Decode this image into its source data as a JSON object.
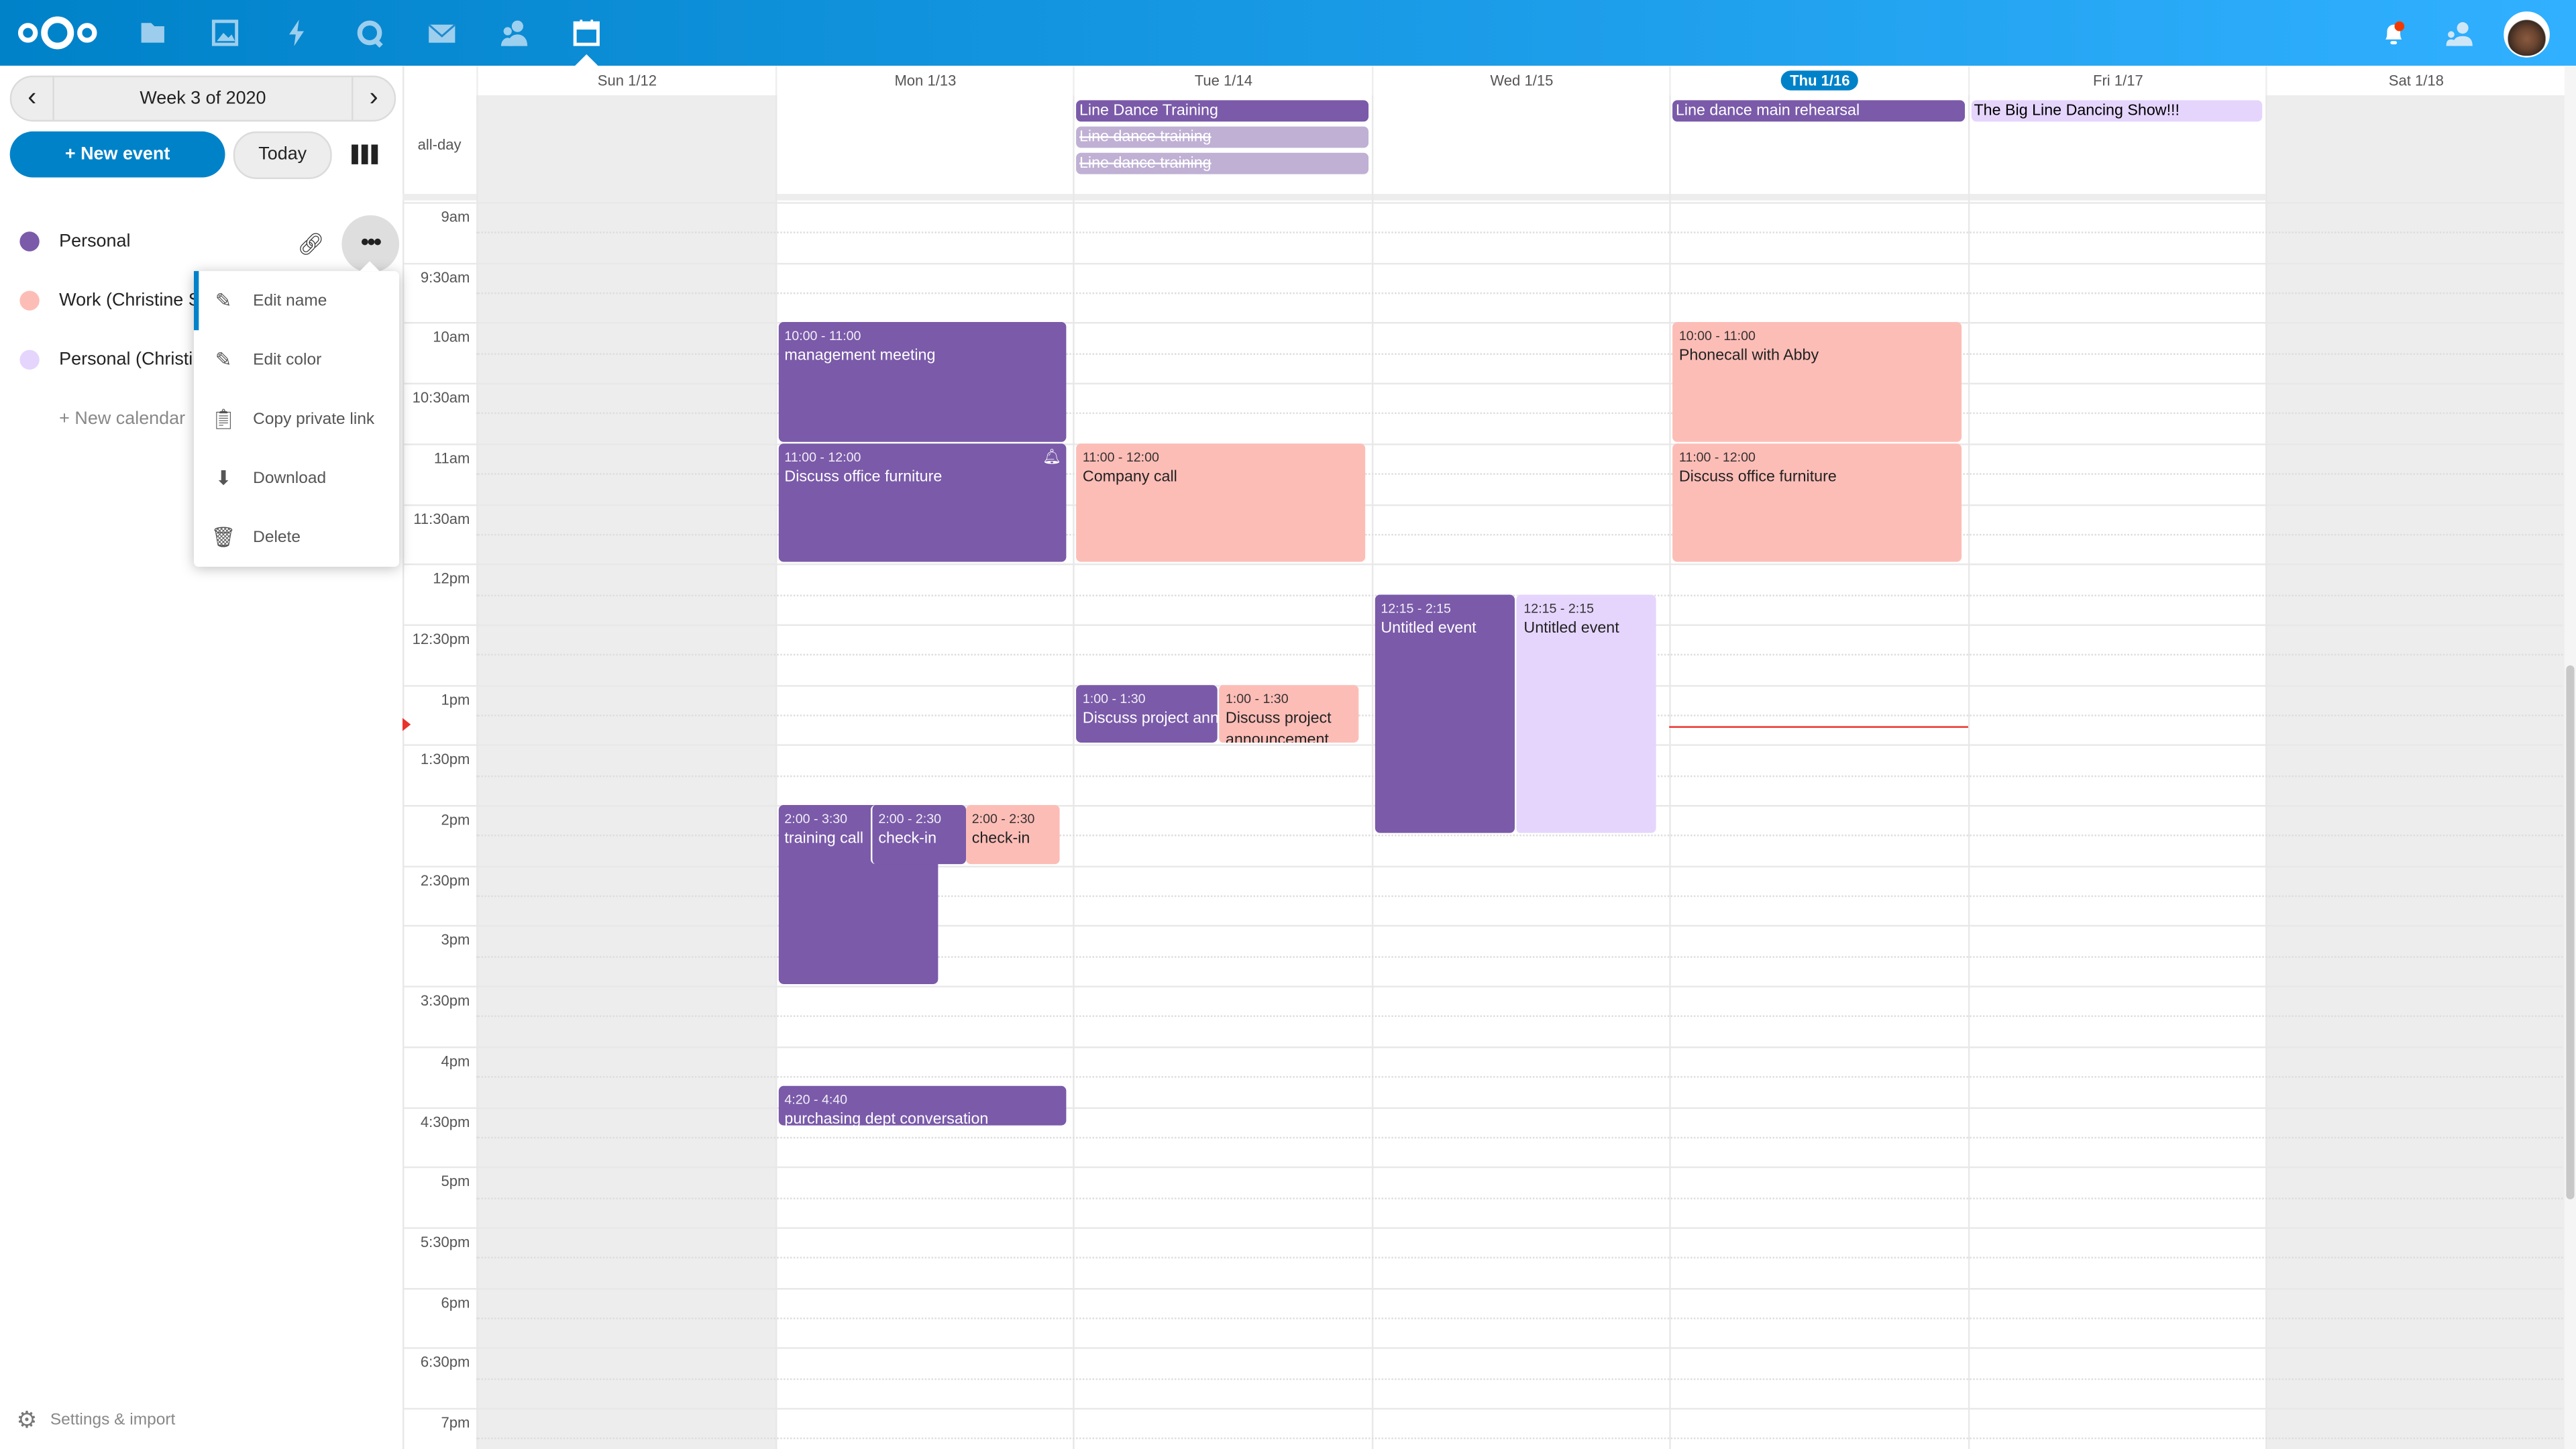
{
  "topbar": {
    "apps": [
      "files-icon",
      "photos-icon",
      "activity-icon",
      "talk-icon",
      "mail-icon",
      "contacts-icon",
      "calendar-icon"
    ],
    "active_app": "calendar-icon",
    "right_icons": [
      "notifications-icon",
      "contacts-menu-icon",
      "user-avatar"
    ],
    "brand_color": "#0082c9"
  },
  "sidebar": {
    "week_label": "Week 3 of 2020",
    "new_event": "+ New event",
    "today": "Today",
    "calendars": [
      {
        "name": "Personal",
        "color": "#7a5aa9"
      },
      {
        "name": "Work (Christine S",
        "color": "#fdbdb7"
      },
      {
        "name": "Personal (Christi",
        "color": "#e5d5fd"
      }
    ],
    "new_calendar": "+ New calendar",
    "settings": "Settings & import",
    "menu": [
      {
        "label": "Edit name",
        "icon": "pencil-icon"
      },
      {
        "label": "Edit color",
        "icon": "pencil-icon"
      },
      {
        "label": "Copy private link",
        "icon": "clipboard-icon"
      },
      {
        "label": "Download",
        "icon": "download-icon"
      },
      {
        "label": "Delete",
        "icon": "trash-icon"
      }
    ]
  },
  "calendar": {
    "allday_label": "all-day",
    "days": [
      "Sun 1/12",
      "Mon 1/13",
      "Tue 1/14",
      "Wed 1/15",
      "Thu 1/16",
      "Fri 1/17",
      "Sat 1/18"
    ],
    "today_index": 4,
    "time_labels": [
      "9am",
      "9:30am",
      "10am",
      "10:30am",
      "11am",
      "11:30am",
      "12pm",
      "12:30pm",
      "1pm",
      "1:30pm",
      "2pm",
      "2:30pm",
      "3pm",
      "3:30pm",
      "4pm",
      "4:30pm",
      "5pm",
      "5:30pm",
      "6pm",
      "6:30pm",
      "7pm"
    ],
    "colors": {
      "purple": "#7a5aa9",
      "pink": "#fdbdb7",
      "lavender": "#e5d5fd",
      "cancelled": "#bfb0d4"
    },
    "allday_events": [
      {
        "day": 2,
        "title": "Line Dance Training",
        "color": "purple",
        "cancelled": false
      },
      {
        "day": 2,
        "title": "Line dance training",
        "color": "cancelled",
        "cancelled": true
      },
      {
        "day": 2,
        "title": "Line dance training",
        "color": "cancelled",
        "cancelled": true
      },
      {
        "day": 4,
        "title": "Line dance main rehearsal",
        "color": "purple",
        "cancelled": false
      },
      {
        "day": 5,
        "title": "The Big Line Dancing Show!!!",
        "color": "lavender",
        "cancelled": false
      }
    ],
    "events": [
      {
        "day": 1,
        "start": 10,
        "end": 11,
        "time": "10:00 - 11:00",
        "title": "management meeting",
        "color": "purple"
      },
      {
        "day": 1,
        "start": 11,
        "end": 12,
        "time": "11:00 - 12:00",
        "title": "Discuss office furniture",
        "color": "purple",
        "alarm": true
      },
      {
        "day": 1,
        "start": 14,
        "end": 15.5,
        "time": "2:00 - 3:30",
        "title": "training call",
        "color": "purple"
      },
      {
        "day": 1,
        "start": 14,
        "end": 14.5,
        "time": "2:00 - 2:30",
        "title": "check-in",
        "color": "purple"
      },
      {
        "day": 1,
        "start": 14,
        "end": 14.5,
        "time": "2:00 - 2:30",
        "title": "check-in",
        "color": "pink"
      },
      {
        "day": 1,
        "start": 16.333,
        "end": 16.667,
        "time": "4:20 - 4:40",
        "title": "purchasing dept conversation",
        "color": "purple"
      },
      {
        "day": 2,
        "start": 11,
        "end": 12,
        "time": "11:00 - 12:00",
        "title": "Company call",
        "color": "pink"
      },
      {
        "day": 2,
        "start": 13,
        "end": 13.5,
        "time": "1:00 - 1:30",
        "title": "Discuss project announcement",
        "color": "purple"
      },
      {
        "day": 2,
        "start": 13,
        "end": 13.5,
        "time": "1:00 - 1:30",
        "title": "Discuss project announcement",
        "color": "pink"
      },
      {
        "day": 3,
        "start": 12.25,
        "end": 14.25,
        "time": "12:15 - 2:15",
        "title": "Untitled event",
        "color": "purple"
      },
      {
        "day": 3,
        "start": 12.25,
        "end": 14.25,
        "time": "12:15 - 2:15",
        "title": "Untitled event",
        "color": "lavender"
      },
      {
        "day": 4,
        "start": 10,
        "end": 11,
        "time": "10:00 - 11:00",
        "title": "Phonecall with Abby",
        "color": "pink"
      },
      {
        "day": 4,
        "start": 11,
        "end": 12,
        "time": "11:00 - 12:00",
        "title": "Discuss office furniture",
        "color": "pink"
      }
    ]
  }
}
